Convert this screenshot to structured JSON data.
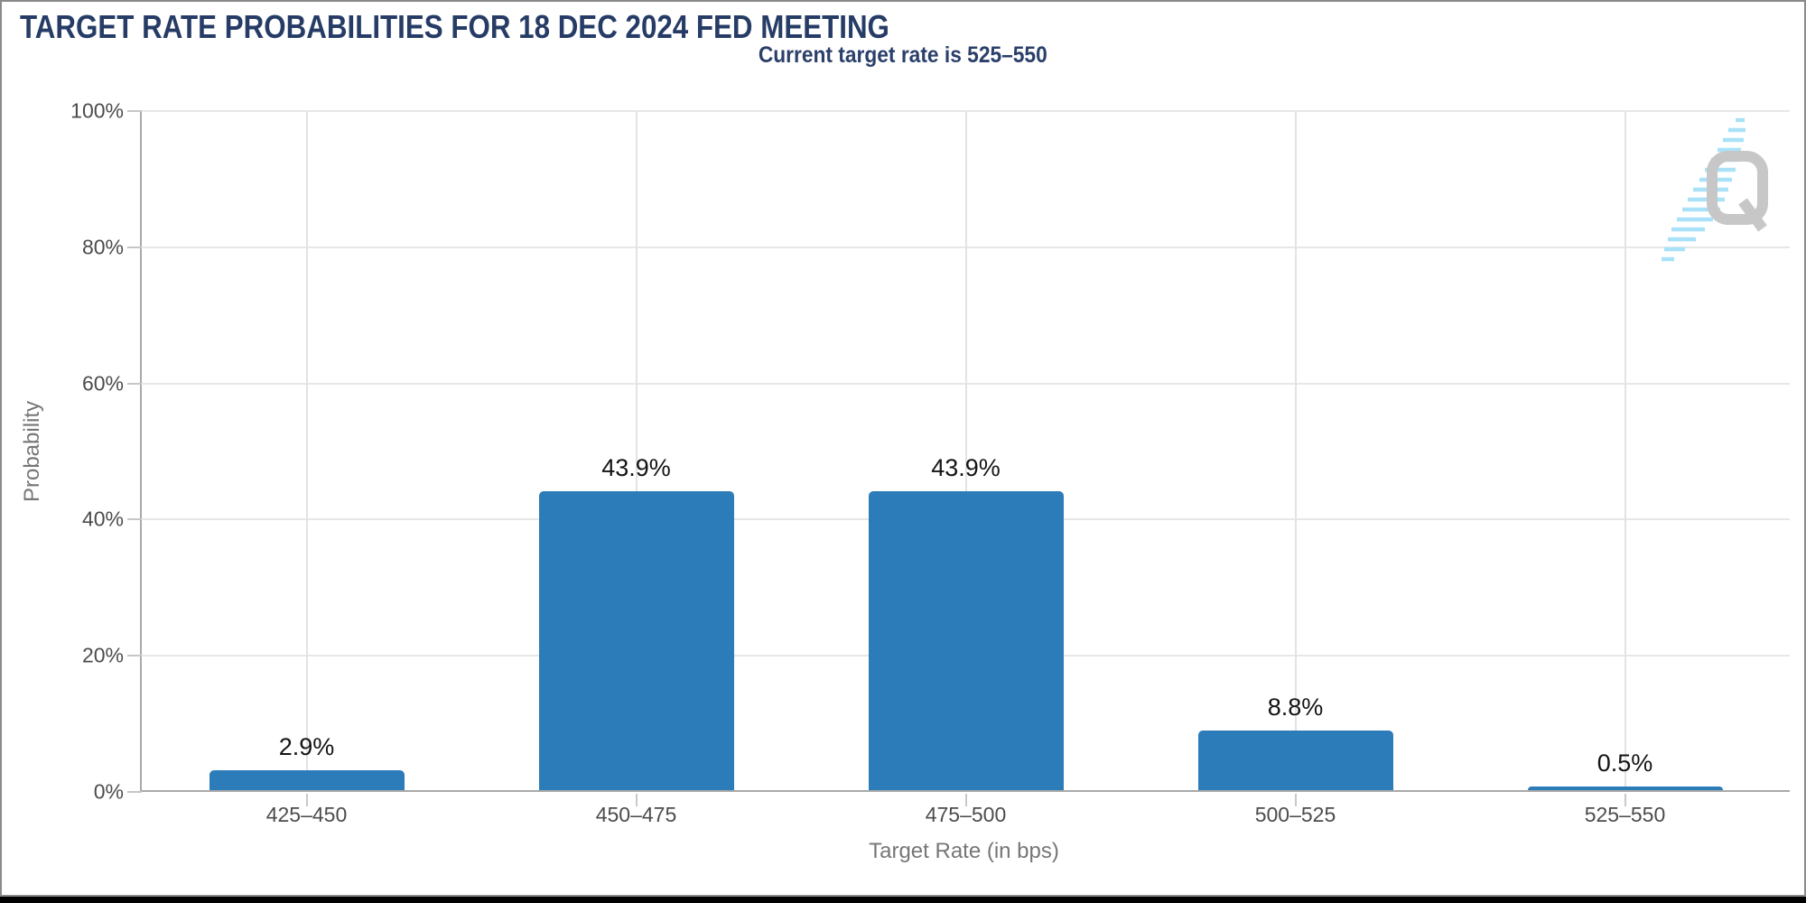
{
  "chart_data": {
    "type": "bar",
    "title": "TARGET RATE PROBABILITIES FOR 18 DEC 2024 FED MEETING",
    "subtitle": "Current target rate is 525–550",
    "categories": [
      "425–450",
      "450–475",
      "475–500",
      "500–525",
      "525–550"
    ],
    "values": [
      2.9,
      43.9,
      43.9,
      8.8,
      0.5
    ],
    "value_labels": [
      "2.9%",
      "43.9%",
      "43.9%",
      "8.8%",
      "0.5%"
    ],
    "xlabel": "Target Rate (in bps)",
    "ylabel": "Probability",
    "ylim": [
      0,
      100
    ],
    "ytick_percent": [
      0,
      20,
      40,
      60,
      80,
      100
    ],
    "ytick_labels": [
      "0%",
      "20%",
      "40%",
      "60%",
      "80%",
      "100%"
    ],
    "grid": true,
    "legend": "none",
    "bar_color": "#2b7cb9"
  },
  "watermark": {
    "icon": "quikstrike-q-logo",
    "letter": "Q"
  },
  "colors": {
    "title_text": "#263c66",
    "bar": "#2b7cb9",
    "grid_line": "#e3e3e3",
    "axis_line": "#a9a9a9",
    "tick_label": "#4c4c4c",
    "axis_title": "#767676",
    "value_label": "#141414",
    "watermark_letter": "#c7c7c7",
    "watermark_dashes": "#a9e2f8",
    "frame_border": "#8a8a8a"
  }
}
